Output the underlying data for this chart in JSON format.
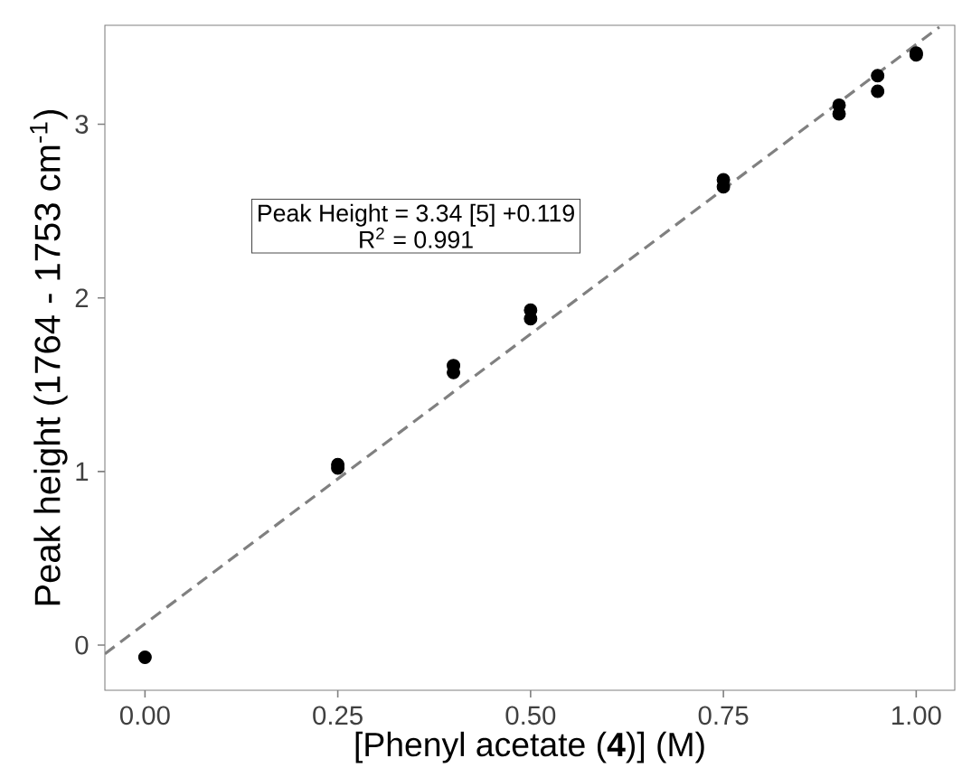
{
  "chart_data": {
    "type": "scatter",
    "xlabel": "[Phenyl acetate (**4**)] (M)",
    "ylabel": "Peak height (1764 - 1753 cm$^{-1}$)",
    "xlim": [
      -0.052,
      1.05
    ],
    "ylim": [
      -0.26,
      3.57
    ],
    "xticks": [
      {
        "value": 0,
        "label": "0.00"
      },
      0.25,
      {
        "value": 0.5,
        "label": "0.50"
      },
      0.75,
      {
        "value": 1,
        "label": "1.00"
      }
    ],
    "yticks": [
      0,
      1,
      2,
      3
    ],
    "grid": false,
    "marker": "circle",
    "annotations": [
      "Peak Height = 3.34 [5] +0.119",
      "R$^{2}$ = 0.991"
    ],
    "series": [
      {
        "color": "#000000",
        "x": [
          0,
          0.25,
          0.25,
          0.4,
          0.4,
          0.5,
          0.5,
          0.75,
          0.75,
          0.9,
          0.9,
          0.95,
          0.95,
          1.0,
          1.0
        ],
        "values": [
          -0.07,
          1.02,
          1.04,
          1.57,
          1.61,
          1.88,
          1.93,
          2.64,
          2.68,
          3.06,
          3.11,
          3.19,
          3.28,
          3.4,
          3.41
        ]
      },
      {
        "type": "line",
        "color": "#808080",
        "marker": "none",
        "line_style": "dashed",
        "x": [
          -0.052,
          1.03
        ],
        "values": [
          -0.05,
          3.56
        ]
      }
    ]
  }
}
